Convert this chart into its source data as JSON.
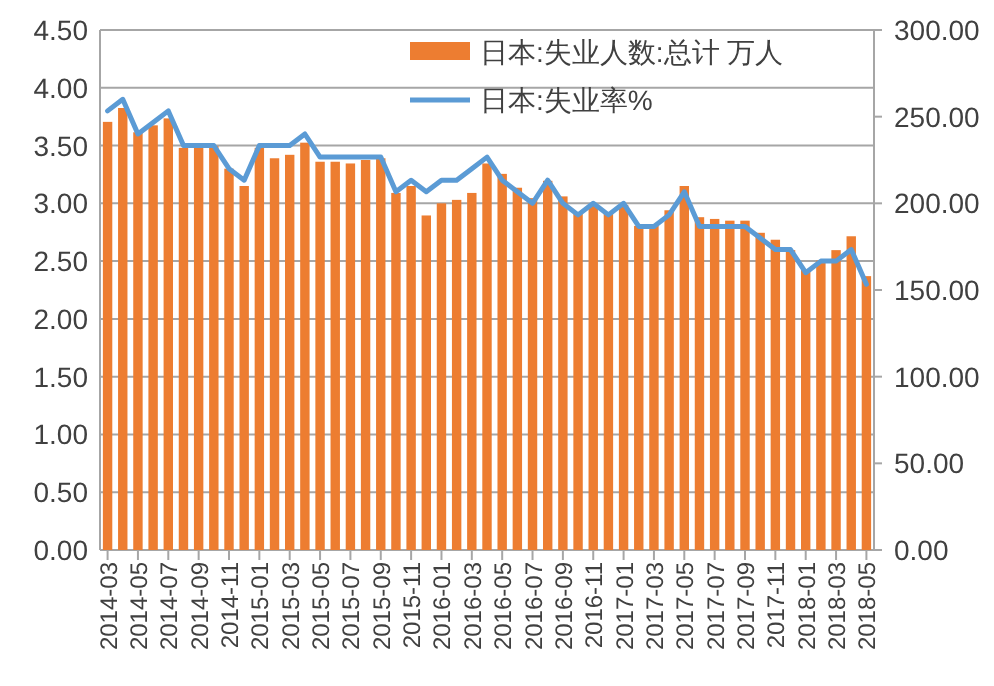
{
  "chart_data": {
    "type": "bar",
    "categories": [
      "2014-03",
      null,
      "2014-05",
      null,
      "2014-07",
      null,
      "2014-09",
      null,
      "2014-11",
      null,
      "2015-01",
      null,
      "2015-03",
      null,
      "2015-05",
      null,
      "2015-07",
      null,
      "2015-09",
      null,
      "2015-11",
      null,
      "2016-01",
      null,
      "2016-03",
      null,
      "2016-05",
      null,
      "2016-07",
      null,
      "2016-09",
      null,
      "2016-11",
      null,
      "2017-01",
      null,
      "2017-03",
      null,
      "2017-05",
      null,
      "2017-07",
      null,
      "2017-09",
      null,
      "2017-11",
      null,
      "2018-01",
      null,
      "2018-03",
      null,
      "2018-05"
    ],
    "series": [
      {
        "name": "日本:失业人数:总计 万人",
        "type": "bar",
        "axis": "y2",
        "color": "#ed7d31",
        "values": [
          247,
          255,
          241,
          245,
          249,
          232,
          234,
          233,
          220,
          210,
          232,
          226,
          228,
          235,
          224,
          224,
          223,
          225,
          226,
          206,
          210,
          193,
          200,
          202,
          206,
          223,
          217,
          209,
          203,
          213,
          204,
          194,
          199,
          194,
          199,
          187,
          187,
          196,
          210,
          192,
          191,
          190,
          190,
          183,
          179,
          173,
          162,
          167,
          173,
          181,
          158
        ]
      },
      {
        "name": "日本:失业率%",
        "type": "line",
        "color": "#5b9bd5",
        "values": [
          3.8,
          3.9,
          3.6,
          3.7,
          3.8,
          3.5,
          3.5,
          3.5,
          3.3,
          3.2,
          3.5,
          3.5,
          3.5,
          3.6,
          3.4,
          3.4,
          3.4,
          3.4,
          3.4,
          3.1,
          3.2,
          3.1,
          3.2,
          3.2,
          3.3,
          3.4,
          3.2,
          3.1,
          3.0,
          3.2,
          3.0,
          2.9,
          3.0,
          2.9,
          3.0,
          2.8,
          2.8,
          2.9,
          3.1,
          2.8,
          2.8,
          2.8,
          2.8,
          2.7,
          2.6,
          2.6,
          2.4,
          2.5,
          2.5,
          2.6,
          2.3
        ]
      }
    ],
    "ylim": [
      0,
      4.5
    ],
    "yticks": [
      {
        "value": 0,
        "label": "0.00"
      },
      {
        "value": 0.5,
        "label": "0.50"
      },
      {
        "value": 1,
        "label": "1.00"
      },
      {
        "value": 1.5,
        "label": "1.50"
      },
      {
        "value": 2,
        "label": "2.00"
      },
      {
        "value": 2.5,
        "label": "2.50"
      },
      {
        "value": 3,
        "label": "3.00"
      },
      {
        "value": 3.5,
        "label": "3.50"
      },
      {
        "value": 4,
        "label": "4.00"
      },
      {
        "value": 4.5,
        "label": "4.50"
      }
    ],
    "y2lim": [
      0,
      300
    ],
    "y2ticks": [
      {
        "value": 0,
        "label": "0.00"
      },
      {
        "value": 50,
        "label": "50.00"
      },
      {
        "value": 100,
        "label": "100.00"
      },
      {
        "value": 150,
        "label": "150.00"
      },
      {
        "value": 200,
        "label": "200.00"
      },
      {
        "value": 250,
        "label": "250.00"
      },
      {
        "value": 300,
        "label": "300.00"
      }
    ],
    "grid": "y",
    "legend": "top right"
  }
}
